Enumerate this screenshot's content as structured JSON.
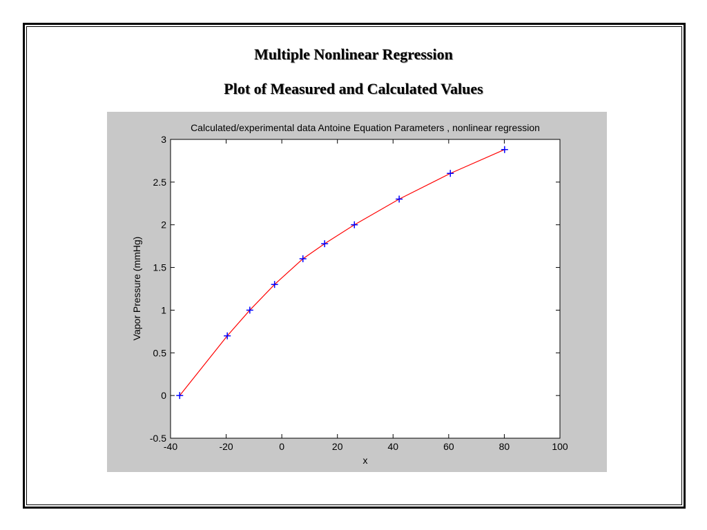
{
  "slide": {
    "title_line1": "Multiple Nonlinear Regression",
    "title_line2": "Plot of Measured and Calculated Values"
  },
  "colors": {
    "figure_background": "#c8c8c8",
    "axes_background": "#ffffff",
    "fit_line": "#ff0000",
    "markers": "#0000ff"
  },
  "chart_data": {
    "type": "line",
    "title": "Calculated/experimental data Antoine Equation Parameters , nonlinear regression",
    "xlabel": "x",
    "ylabel": "Vapor Pressure (mmHg)",
    "xlim": [
      -40,
      100
    ],
    "ylim": [
      -0.5,
      3
    ],
    "xticks": [
      -40,
      -20,
      0,
      20,
      40,
      60,
      80,
      100
    ],
    "xtick_labels": [
      "-40",
      "-20",
      "0",
      "20",
      "40",
      "60",
      "80",
      "100"
    ],
    "yticks": [
      -0.5,
      0,
      0.5,
      1,
      1.5,
      2,
      2.5,
      3
    ],
    "ytick_labels": [
      "-0.5",
      "0",
      "0.5",
      "1",
      "1.5",
      "2",
      "2.5",
      "3"
    ],
    "grid": false,
    "series": [
      {
        "style": "line",
        "color": "#ff0000",
        "x": [
          -36.7,
          -19.6,
          -11.5,
          -2.6,
          7.6,
          15.4,
          26.1,
          42.2,
          60.6,
          80.1
        ],
        "y": [
          0,
          0.699,
          1,
          1.301,
          1.602,
          1.778,
          2,
          2.301,
          2.602,
          2.881
        ]
      },
      {
        "style": "markers",
        "marker": "+",
        "color": "#0000ff",
        "x": [
          -36.7,
          -19.6,
          -11.5,
          -2.6,
          7.6,
          15.4,
          26.1,
          42.2,
          60.6,
          80.1
        ],
        "y": [
          0,
          0.699,
          1,
          1.301,
          1.602,
          1.778,
          2,
          2.301,
          2.602,
          2.881
        ]
      }
    ]
  }
}
